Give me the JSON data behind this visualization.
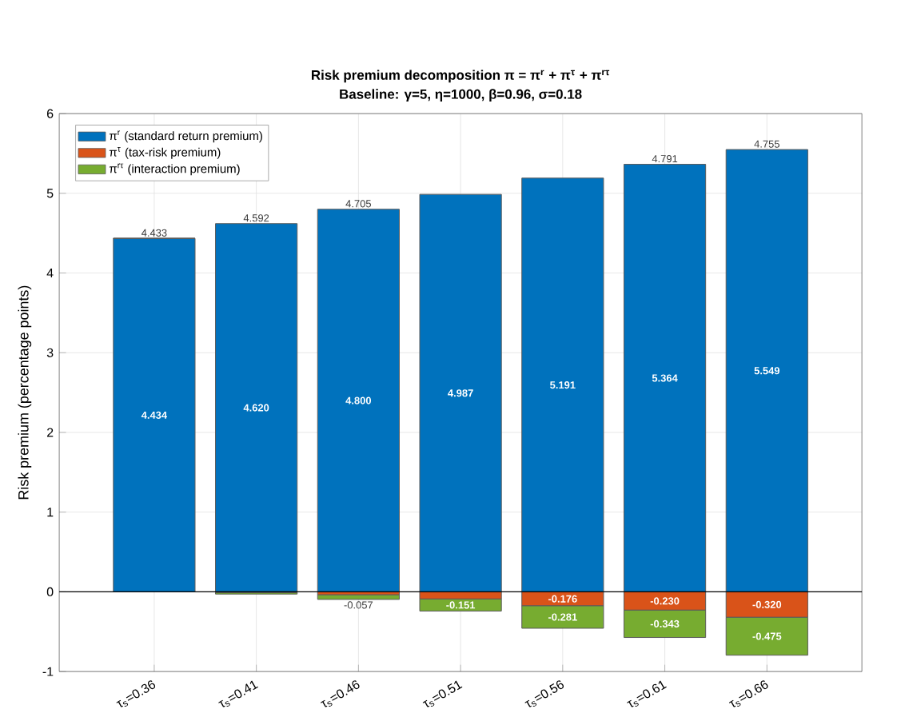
{
  "chart_data": {
    "type": "bar",
    "title": "Risk premium decomposition  π = π$^{r}$ + π$^{τ}$ + π$^{rτ}$",
    "subtitle": "Baseline: γ=5,  η=1000,  β=0.96,  σ=0.18",
    "ylabel": "Risk premium (percentage points)",
    "categories": [
      "τ$_{s}$=0.36",
      "τ$_{s}$=0.41",
      "τ$_{s}$=0.46",
      "τ$_{s}$=0.51",
      "τ$_{s}$=0.56",
      "τ$_{s}$=0.61",
      "τ$_{s}$=0.66"
    ],
    "stacked": true,
    "series": [
      {
        "name": "π$^{r}$  (standard return premium)",
        "color": "#0072bd",
        "values": [
          4.434,
          4.62,
          4.8,
          4.987,
          5.191,
          5.364,
          5.549
        ],
        "value_labels": [
          "4.434",
          "4.620",
          "4.800",
          "4.987",
          "5.191",
          "5.364",
          "5.549"
        ]
      },
      {
        "name": "π$^{τ}$  (tax-risk premium)",
        "color": "#d95319",
        "values": [
          0.0,
          -0.01,
          -0.038,
          -0.09,
          -0.176,
          -0.23,
          -0.32
        ],
        "value_labels": [
          null,
          null,
          null,
          null,
          "-0.176",
          "-0.230",
          "-0.320"
        ]
      },
      {
        "name": "π$^{rτ}$  (interaction premium)",
        "color": "#77ac30",
        "values": [
          0.0,
          -0.018,
          -0.057,
          -0.151,
          -0.281,
          -0.343,
          -0.475
        ],
        "value_labels": [
          null,
          null,
          "-0.057",
          "-0.151",
          "-0.281",
          "-0.343",
          "-0.475"
        ]
      }
    ],
    "totals": [
      "4.433",
      "4.592",
      "4.705",
      null,
      null,
      "4.791",
      "4.755"
    ],
    "ylim": [
      -1,
      6
    ],
    "yticks": [
      -1,
      0,
      1,
      2,
      3,
      4,
      5,
      6
    ],
    "grid": true,
    "legend": "top left",
    "ref_lines": [
      {
        "axis": "y",
        "value": 0,
        "color": "#000000"
      }
    ]
  }
}
